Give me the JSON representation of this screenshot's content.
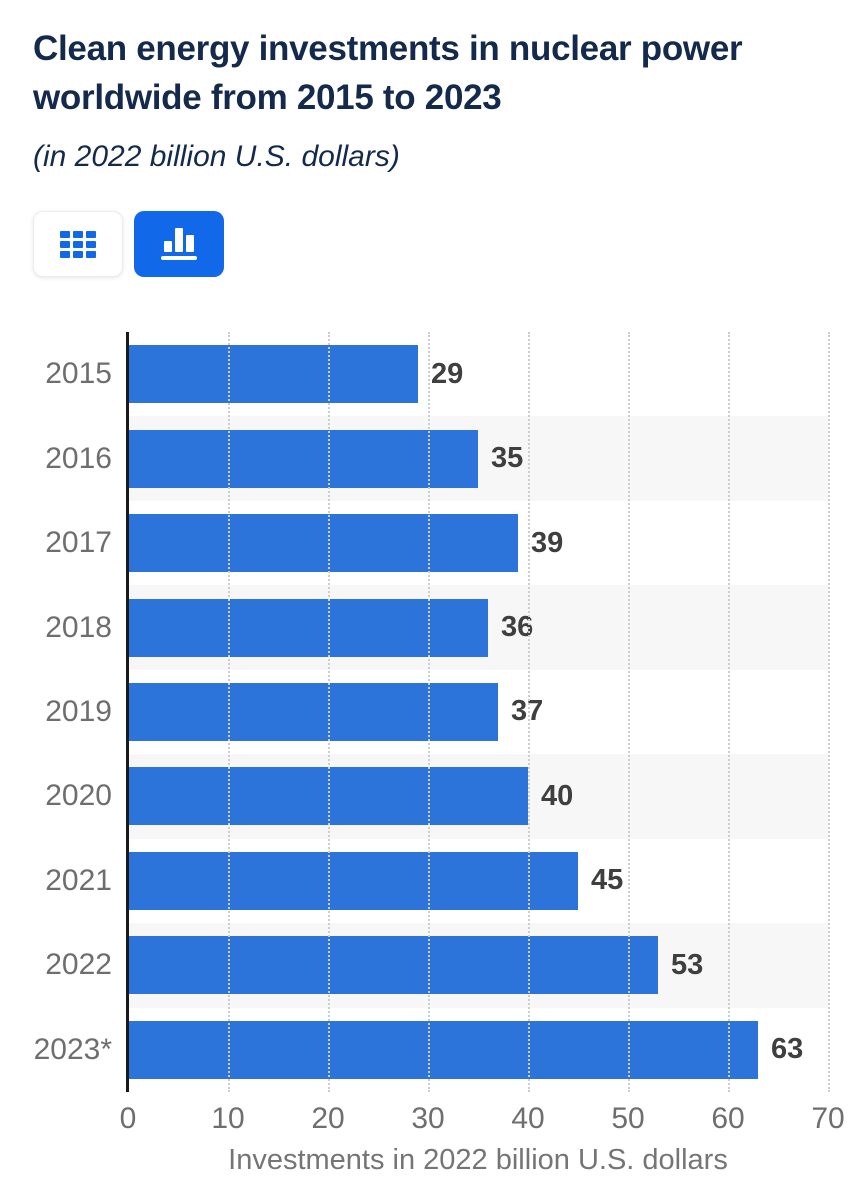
{
  "header": {
    "title": "Clean energy investments in nuclear power worldwide from 2015 to 2023",
    "subtitle": "(in 2022 billion U.S. dollars)"
  },
  "toolbar": {
    "table_view_button": {
      "icon": "table-grid-icon",
      "active": false
    },
    "chart_view_button": {
      "icon": "bar-chart-icon",
      "active": true
    }
  },
  "chart_data": {
    "type": "bar",
    "orientation": "horizontal",
    "title": "Clean energy investments in nuclear power worldwide from 2015 to 2023",
    "subtitle": "(in 2022 billion U.S. dollars)",
    "categories": [
      "2015",
      "2016",
      "2017",
      "2018",
      "2019",
      "2020",
      "2021",
      "2022",
      "2023*"
    ],
    "values": [
      29,
      35,
      39,
      36,
      37,
      40,
      45,
      53,
      63
    ],
    "xlabel": "Investments in 2022 billion U.S. dollars",
    "ylabel": "",
    "xlim": [
      0,
      70
    ],
    "xticks": [
      0,
      10,
      20,
      30,
      40,
      50,
      60,
      70
    ],
    "grid": "vertical-dotted",
    "legend": false,
    "value_labels": true
  },
  "colors": {
    "bar": "#2d74da",
    "button_active_bg": "#1168e8",
    "icon_blue": "#1168e8",
    "row_band_alt": "#f7f7f7",
    "title_text": "#142a4d",
    "axis_text": "#6e6e6e",
    "value_text": "#3f3f3f",
    "xlabel_text": "#757575",
    "axis_line": "#1a1a1a",
    "gridline": "#cdcdcd"
  }
}
